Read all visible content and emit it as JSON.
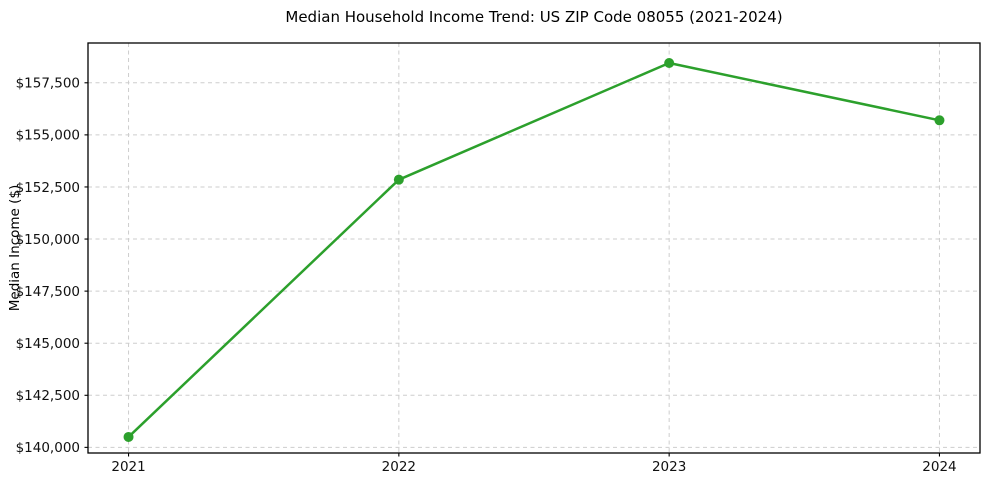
{
  "figure": {
    "background_color": "#ffffff",
    "text_color": "#111111"
  },
  "chart_data": {
    "type": "line",
    "title": "Median Household Income Trend: US ZIP Code 08055 (2021-2024)",
    "xlabel": "",
    "ylabel": "Median Income ($)",
    "categories": [
      "2021",
      "2022",
      "2023",
      "2024"
    ],
    "series": [
      {
        "name": "Median Household Income",
        "color": "#2ca02c",
        "marker": "circle",
        "marker_size": 5,
        "line_width": 2.5,
        "values": [
          140500,
          152850,
          158450,
          155700
        ]
      }
    ],
    "y_ticks": [
      140000,
      142500,
      145000,
      147500,
      150000,
      152500,
      155000,
      157500
    ],
    "y_tick_labels": [
      "$140,000",
      "$142,500",
      "$145,000",
      "$147,500",
      "$150,000",
      "$152,500",
      "$155,000",
      "$157,500"
    ],
    "ylim": [
      139730,
      159410
    ],
    "x_margin": 0.15,
    "grid": {
      "show": true,
      "style": "dashed",
      "color": "#cdcdcd",
      "axes": "both"
    },
    "spine_color": "#000000",
    "legend_position": "none"
  }
}
